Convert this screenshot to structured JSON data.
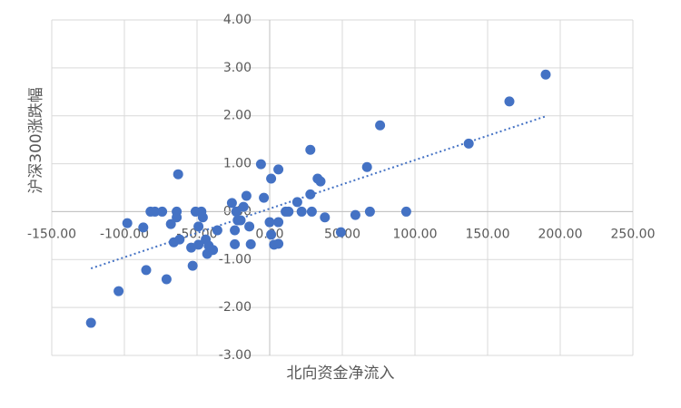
{
  "chart_data": {
    "type": "scatter",
    "color": "#4472c4",
    "trendline": "linear",
    "grid": true,
    "x_label": "北向资金净流入",
    "y_label": "沪深300涨跌幅",
    "xlim": [
      -150,
      250
    ],
    "ylim": [
      -3,
      4
    ],
    "xticks": [
      {
        "value": -150,
        "label": "-150.00"
      },
      {
        "value": -100,
        "label": "-100.00"
      },
      {
        "value": -50,
        "label": "-50.00"
      },
      {
        "value": 0,
        "label": "0.00"
      },
      {
        "value": 50,
        "label": "50.00"
      },
      {
        "value": 100,
        "label": "100.00"
      },
      {
        "value": 150,
        "label": "150.00"
      },
      {
        "value": 200,
        "label": "200.00"
      },
      {
        "value": 250,
        "label": "250.00"
      }
    ],
    "yticks": [
      {
        "value": -3,
        "label": "-3.00"
      },
      {
        "value": -2,
        "label": "-2.00"
      },
      {
        "value": -1,
        "label": "-1.00"
      },
      {
        "value": 0,
        "label": "0.00"
      },
      {
        "value": 1,
        "label": "1.00"
      },
      {
        "value": 2,
        "label": "2.00"
      },
      {
        "value": 3,
        "label": "3.00"
      },
      {
        "value": 4,
        "label": "4.00"
      }
    ],
    "x": [
      -123,
      -104,
      -85,
      -98,
      -87,
      -82,
      -79,
      -74,
      -71,
      -68,
      -66,
      -63,
      -64,
      -64,
      -62,
      -54,
      -53,
      -51,
      -49,
      -49,
      -47,
      -46,
      -44,
      -43,
      -42,
      -39,
      -36,
      -26,
      -24,
      -24,
      -23,
      -22,
      -20,
      -18,
      -16,
      -14,
      -13,
      -6,
      -4,
      1,
      0,
      1,
      3,
      6,
      6,
      6,
      11,
      13,
      19,
      22,
      28,
      28,
      29,
      33,
      35,
      38,
      49,
      59,
      67,
      69,
      76,
      94,
      137,
      165,
      190
    ],
    "values": [
      -2.32,
      -1.66,
      -1.22,
      -0.24,
      -0.33,
      0,
      0,
      0,
      -1.41,
      -0.26,
      -0.64,
      0.78,
      0,
      -0.12,
      -0.58,
      -0.75,
      -1.13,
      0,
      -0.31,
      -0.69,
      0,
      -0.12,
      -0.58,
      -0.88,
      -0.71,
      -0.8,
      -0.39,
      0.18,
      -0.39,
      -0.68,
      0,
      -0.18,
      -0.18,
      0.1,
      0.33,
      -0.31,
      -0.68,
      0.99,
      0.29,
      0.69,
      -0.22,
      -0.48,
      -0.69,
      -0.67,
      -0.22,
      0.88,
      0,
      0,
      0.2,
      0,
      1.29,
      0.36,
      0,
      0.69,
      0.63,
      -0.12,
      -0.43,
      -0.07,
      0.93,
      0,
      1.8,
      0,
      1.42,
      2.3,
      2.86
    ]
  }
}
